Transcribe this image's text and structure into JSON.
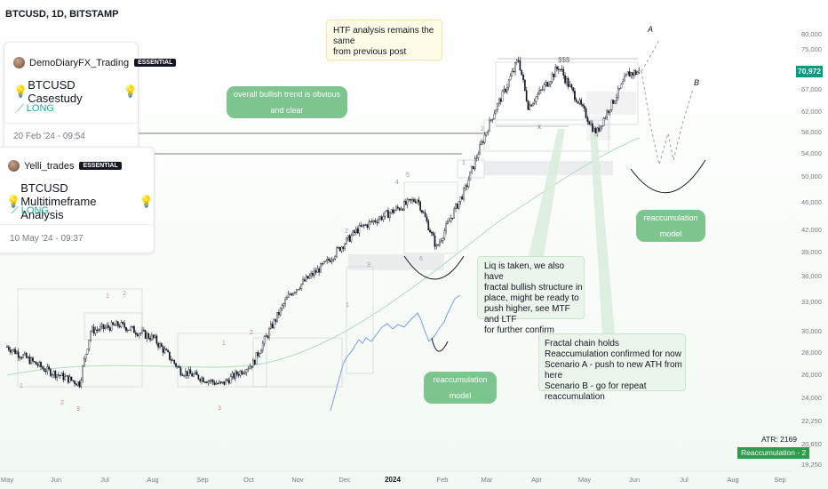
{
  "header": {
    "symbol": "BTCUSD, 1D, BITSTAMP"
  },
  "cards": [
    {
      "author": "DemoDiaryFX_Trading",
      "badge": "ESSENTIAL",
      "title": "BTCUSD Casestudy",
      "direction": "LONG",
      "date": "20 Feb '24 - 09:54"
    },
    {
      "author": "Yelli_trades",
      "badge": "ESSENTIAL",
      "title": "BTCUSD Multitimeframe Analysis",
      "direction": "LONG",
      "date": "10 May '24 - 09:37"
    }
  ],
  "notes": {
    "htf": [
      "HTF analysis remains the same",
      "from previous post"
    ],
    "liq": [
      "Liq is taken, we also have",
      "fractal bullish structure in",
      "place, might be ready to",
      "push higher, see MTF and LTF",
      "for further confirm"
    ],
    "fractal": [
      "Fractal chain holds",
      "Reaccumulation confirmed for now",
      "Scenario A - push to new ATH from here",
      "Scenario B - go for repeat reaccumulation"
    ],
    "bullish_trend": "overall bullish trend is obvious and clear",
    "reacc_model_1": "reaccumulation model",
    "reacc_model_2": "reaccumulation model"
  },
  "labels": {
    "sss": "$$$",
    "x": "x",
    "scenario_a": "A",
    "scenario_b": "B"
  },
  "price_axis": [
    "80,000",
    "75,000",
    "67,000",
    "62,000",
    "58,000",
    "54,000",
    "50,000",
    "46,000",
    "42,000",
    "39,000",
    "36,000",
    "33,000",
    "30,000",
    "28,000",
    "26,000",
    "24,000",
    "22,250",
    "20,650",
    "19,250"
  ],
  "time_axis": [
    "May",
    "Jun",
    "Jul",
    "Aug",
    "Sep",
    "Oct",
    "Nov",
    "Dec",
    "2024",
    "Feb",
    "Mar",
    "Apr",
    "May",
    "Jun",
    "Jul",
    "Aug",
    "Sep"
  ],
  "last_price": "70,972",
  "atr": "ATR: 2169",
  "indicator_label": "Reaccumulation - 2",
  "wave_numbers": {
    "pre": [
      "1",
      "2",
      "3",
      "1",
      "2",
      "3",
      "1",
      "2",
      "3"
    ],
    "main": [
      "1",
      "2",
      "3",
      "4",
      "5",
      "6",
      "1",
      "2"
    ]
  },
  "colors": {
    "up": "#26a69a",
    "candle": "#131722",
    "accent": "#089981",
    "pill": "#7cc58f",
    "fractal_line": "#7b9cf0",
    "ma": "#b7d9c0"
  },
  "chart_data": {
    "type": "candlestick",
    "symbol": "BTCUSD",
    "timeframe": "1D",
    "x_range": [
      "2023-05",
      "2024-09"
    ],
    "ylim": [
      19250,
      82000
    ],
    "y_scale": "log",
    "grid": false,
    "close_path": [
      {
        "x": "2023-05-01",
        "y": 28500
      },
      {
        "x": "2023-05-25",
        "y": 26400
      },
      {
        "x": "2023-06-15",
        "y": 25200
      },
      {
        "x": "2023-06-22",
        "y": 30000
      },
      {
        "x": "2023-07-10",
        "y": 30600
      },
      {
        "x": "2023-07-31",
        "y": 29300
      },
      {
        "x": "2023-08-17",
        "y": 26300
      },
      {
        "x": "2023-09-11",
        "y": 25100
      },
      {
        "x": "2023-10-01",
        "y": 27000
      },
      {
        "x": "2023-10-24",
        "y": 33900
      },
      {
        "x": "2023-11-15",
        "y": 37500
      },
      {
        "x": "2023-12-05",
        "y": 42000
      },
      {
        "x": "2024-01-11",
        "y": 46500
      },
      {
        "x": "2024-01-23",
        "y": 39500
      },
      {
        "x": "2024-02-10",
        "y": 48000
      },
      {
        "x": "2024-02-28",
        "y": 62000
      },
      {
        "x": "2024-03-14",
        "y": 73000
      },
      {
        "x": "2024-03-20",
        "y": 63000
      },
      {
        "x": "2024-04-08",
        "y": 71500
      },
      {
        "x": "2024-05-01",
        "y": 57500
      },
      {
        "x": "2024-05-21",
        "y": 70000
      },
      {
        "x": "2024-06-07",
        "y": 70972
      }
    ],
    "last_close": 70972,
    "annotations": {
      "atr": 2169,
      "indicator": "Reaccumulation - 2"
    }
  }
}
